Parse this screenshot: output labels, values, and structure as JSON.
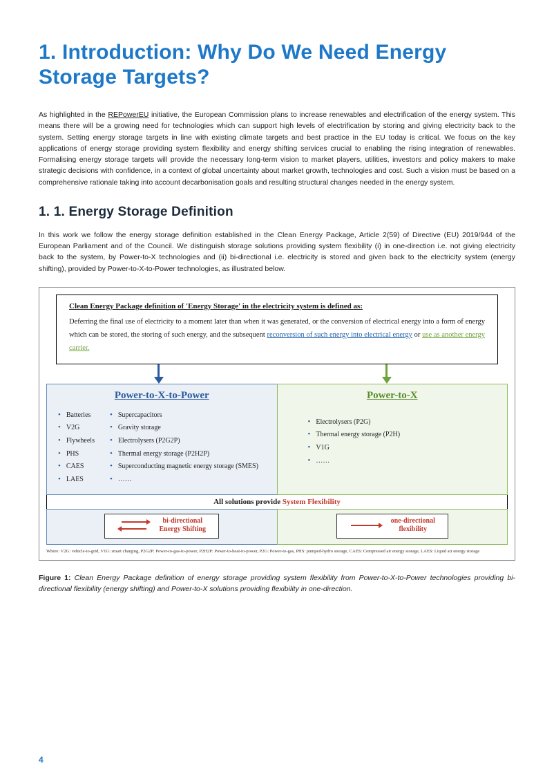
{
  "title": "1. Introduction: Why Do We Need Energy Storage Targets?",
  "intro_pre": "As highlighted in the ",
  "intro_link": "REPowerEU",
  "intro_post": " initiative, the European Commission plans to increase renewables and electrification of the energy system. This means there will be a growing need for technologies which can support high levels of electrification by storing and giving electricity back to the system. Setting energy storage targets in line with existing climate targets and best practice in the EU today is critical. We focus on the key applications of energy storage providing system flexibility and energy shifting services crucial to enabling the rising integration of renewables. Formalising energy storage targets will provide the necessary long-term vision to market players, utilities, investors and policy makers to make strategic decisions with confidence, in a context of global uncertainty about market growth, technologies and cost. Such a vision must be based on a comprehensive rationale taking into account decarbonisation goals and resulting structural changes needed in the energy system.",
  "section_title": "1. 1. Energy Storage Definition",
  "section_text": "In this work we follow the energy storage definition established in the Clean Energy Package, Article 2(59) of Directive (EU) 2019/944 of the European Parliament and of the Council. We distinguish storage solutions providing system flexibility (i) in one-direction i.e. not giving electricity back to the system, by Power-to-X technologies and (ii) bi-directional i.e. electricity is stored and given back to the electricity system (energy shifting), provided by Power-to-X-to-Power technologies, as illustrated below.",
  "definition": {
    "title": "Clean Energy Package definition of 'Energy Storage' in the electricity system is defined as:",
    "body_pre": "Deferring the final use of electricity to a moment later than when it was generated, or the conversion of electrical energy into a form of energy which can be stored, the storing of such energy, and the subsequent ",
    "link_blue": "reconversion of such energy into electrical energy",
    "body_mid": " or ",
    "link_green": "use as another energy carrier."
  },
  "col_left": {
    "title": "Power-to-X-to-Power",
    "list_a": [
      "Batteries",
      "V2G",
      "Flywheels",
      "PHS",
      "CAES",
      "LAES"
    ],
    "list_b": [
      "Supercapacitors",
      "Gravity storage",
      "Electrolysers (P2G2P)",
      "Thermal energy storage (P2H2P)",
      "Superconducting magnetic energy storage (SMES)",
      "……"
    ]
  },
  "col_right": {
    "title": "Power-to-X",
    "list": [
      "Electrolysers (P2G)",
      "Thermal energy storage (P2H)",
      "V1G",
      "……"
    ]
  },
  "banner_pre": "All solutions provide ",
  "banner_red": "System Flexibility",
  "bottom_left": "bi-directional\nEnergy Shifting",
  "bottom_right": "one-directional\nflexibility",
  "footnote": "Where: V2G: vehicle-to-grid, V1G: smart charging, P2G2P: Power-to-gas-to-power, P2H2P: Power-to-heat-to-power, P2G: Power-to-gas, PHS: pumped-hydro storage, CAES: Compressed air energy storage, LAES: Liquid air energy storage",
  "caption_label": "Figure 1:",
  "caption_text": " Clean Energy Package definition of energy storage providing system flexibility from Power-to-X-to-Power technologies providing bi-directional flexibility (energy shifting) and Power-to-X solutions providing flexibility in one-direction.",
  "page_num": "4",
  "colors": {
    "title_blue": "#1e78c8",
    "left_border": "#6089b8",
    "left_bg": "#eaf0f6",
    "right_border": "#8fbb5f",
    "right_bg": "#f0f7ea",
    "red": "#c0392b",
    "arrow_blue": "#2a5a9e",
    "arrow_green": "#6fa23a"
  }
}
